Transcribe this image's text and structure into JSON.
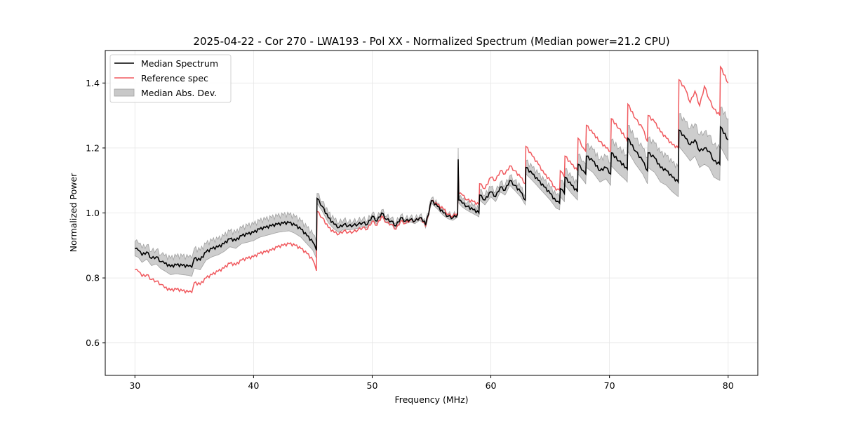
{
  "chart_data": {
    "type": "line",
    "title": "2025-04-22 - Cor 270 - LWA193 - Pol XX - Normalized Spectrum (Median power=21.2 CPU)",
    "xlabel": "Frequency (MHz)",
    "ylabel": "Normalized Power",
    "xlim": [
      27.5,
      82.5
    ],
    "ylim": [
      0.5,
      1.5
    ],
    "xticks": [
      30,
      40,
      50,
      60,
      70,
      80
    ],
    "xtick_labels": [
      "30",
      "40",
      "50",
      "60",
      "70",
      "80"
    ],
    "yticks": [
      0.6,
      0.8,
      1.0,
      1.2,
      1.4
    ],
    "ytick_labels": [
      "0.6",
      "0.8",
      "1.0",
      "1.2",
      "1.4"
    ],
    "grid": true,
    "legend_position": "top-left",
    "legend": [
      {
        "label": "Median Spectrum",
        "kind": "line",
        "color": "#000000"
      },
      {
        "label": "Reference spec",
        "kind": "line",
        "color": "#f0595e"
      },
      {
        "label": "Median Abs. Dev.",
        "kind": "patch",
        "color": "#c8c8c8"
      }
    ],
    "x": [
      30.0,
      30.3,
      30.6,
      31.0,
      31.4,
      31.8,
      32.2,
      32.5,
      33.0,
      33.5,
      34.0,
      34.5,
      34.8,
      35.0,
      35.5,
      36.0,
      36.5,
      37.0,
      37.5,
      38.0,
      38.5,
      39.0,
      39.5,
      40.0,
      40.5,
      41.0,
      41.5,
      42.0,
      42.5,
      43.0,
      43.5,
      44.0,
      44.5,
      45.0,
      45.3,
      45.35,
      45.8,
      46.3,
      46.8,
      47.2,
      47.6,
      48.0,
      48.4,
      48.8,
      49.2,
      49.6,
      50.0,
      50.4,
      50.8,
      51.2,
      51.6,
      52.0,
      52.4,
      52.8,
      53.2,
      53.6,
      54.0,
      54.4,
      54.5,
      55.0,
      55.5,
      56.0,
      56.4,
      56.8,
      57.2,
      57.25,
      57.3,
      57.6,
      58.0,
      58.5,
      59.0,
      59.05,
      59.5,
      60.0,
      60.4,
      60.8,
      61.2,
      61.6,
      62.0,
      62.5,
      62.9,
      62.95,
      63.5,
      64.0,
      64.5,
      65.0,
      65.5,
      65.8,
      65.85,
      66.2,
      66.25,
      66.8,
      67.3,
      67.35,
      67.8,
      68.0,
      68.05,
      68.6,
      69.2,
      69.7,
      70.1,
      70.15,
      70.8,
      71.4,
      71.5,
      71.55,
      72.2,
      72.8,
      73.2,
      73.25,
      73.8,
      74.3,
      74.8,
      75.3,
      75.8,
      75.85,
      76.4,
      76.8,
      77.2,
      77.6,
      78.0,
      78.4,
      78.8,
      79.3,
      79.35,
      80.0
    ],
    "series": [
      {
        "name": "Median Spectrum",
        "color": "#000000",
        "values": [
          0.89,
          0.885,
          0.87,
          0.88,
          0.86,
          0.865,
          0.85,
          0.845,
          0.835,
          0.84,
          0.838,
          0.836,
          0.833,
          0.86,
          0.855,
          0.88,
          0.89,
          0.895,
          0.905,
          0.92,
          0.915,
          0.93,
          0.935,
          0.94,
          0.95,
          0.955,
          0.96,
          0.965,
          0.968,
          0.97,
          0.962,
          0.95,
          0.93,
          0.91,
          0.885,
          1.045,
          1.02,
          0.985,
          0.965,
          0.955,
          0.965,
          0.96,
          0.962,
          0.965,
          0.97,
          0.965,
          0.99,
          0.975,
          1.0,
          0.98,
          0.975,
          0.96,
          0.985,
          0.975,
          0.98,
          0.975,
          0.985,
          0.975,
          0.962,
          1.038,
          1.02,
          1.0,
          0.99,
          0.985,
          0.995,
          1.165,
          1.04,
          1.03,
          1.02,
          1.01,
          1.0,
          1.055,
          1.04,
          1.065,
          1.05,
          1.08,
          1.07,
          1.1,
          1.085,
          1.065,
          1.04,
          1.14,
          1.12,
          1.1,
          1.08,
          1.06,
          1.035,
          1.03,
          1.075,
          1.06,
          1.11,
          1.085,
          1.065,
          1.15,
          1.13,
          1.12,
          1.175,
          1.16,
          1.13,
          1.14,
          1.12,
          1.185,
          1.16,
          1.14,
          1.135,
          1.23,
          1.19,
          1.16,
          1.13,
          1.185,
          1.17,
          1.14,
          1.13,
          1.11,
          1.095,
          1.255,
          1.23,
          1.21,
          1.225,
          1.19,
          1.2,
          1.19,
          1.16,
          1.15,
          1.265,
          1.225
        ]
      },
      {
        "name": "Reference spec",
        "color": "#f0595e",
        "values": [
          0.825,
          0.82,
          0.805,
          0.81,
          0.795,
          0.79,
          0.78,
          0.77,
          0.762,
          0.765,
          0.76,
          0.757,
          0.755,
          0.785,
          0.78,
          0.8,
          0.81,
          0.82,
          0.83,
          0.845,
          0.84,
          0.855,
          0.86,
          0.865,
          0.875,
          0.88,
          0.885,
          0.895,
          0.9,
          0.905,
          0.9,
          0.89,
          0.875,
          0.855,
          0.822,
          1.005,
          0.985,
          0.955,
          0.94,
          0.935,
          0.945,
          0.94,
          0.942,
          0.948,
          0.955,
          0.95,
          0.975,
          0.962,
          0.99,
          0.97,
          0.965,
          0.95,
          0.975,
          0.968,
          0.978,
          0.975,
          0.985,
          0.97,
          0.958,
          1.038,
          1.025,
          1.012,
          0.995,
          0.99,
          1.0,
          1.14,
          1.06,
          1.055,
          1.04,
          1.035,
          1.025,
          1.09,
          1.075,
          1.11,
          1.1,
          1.13,
          1.12,
          1.145,
          1.13,
          1.11,
          1.09,
          1.205,
          1.175,
          1.15,
          1.12,
          1.1,
          1.07,
          1.07,
          1.13,
          1.11,
          1.175,
          1.15,
          1.13,
          1.23,
          1.2,
          1.19,
          1.27,
          1.245,
          1.22,
          1.2,
          1.19,
          1.29,
          1.26,
          1.23,
          1.22,
          1.335,
          1.29,
          1.26,
          1.22,
          1.3,
          1.28,
          1.25,
          1.23,
          1.21,
          1.2,
          1.41,
          1.38,
          1.34,
          1.375,
          1.33,
          1.39,
          1.35,
          1.32,
          1.3,
          1.45,
          1.4
        ]
      }
    ],
    "mad_halfwidth": [
      0.022,
      0.022,
      0.022,
      0.022,
      0.022,
      0.022,
      0.022,
      0.023,
      0.025,
      0.027,
      0.028,
      0.028,
      0.028,
      0.03,
      0.03,
      0.025,
      0.025,
      0.024,
      0.024,
      0.024,
      0.024,
      0.024,
      0.025,
      0.025,
      0.025,
      0.025,
      0.025,
      0.025,
      0.025,
      0.025,
      0.025,
      0.025,
      0.025,
      0.025,
      0.025,
      0.015,
      0.015,
      0.015,
      0.015,
      0.015,
      0.015,
      0.012,
      0.012,
      0.012,
      0.012,
      0.012,
      0.01,
      0.01,
      0.01,
      0.01,
      0.01,
      0.01,
      0.008,
      0.008,
      0.008,
      0.008,
      0.008,
      0.008,
      0.008,
      0.008,
      0.008,
      0.008,
      0.008,
      0.008,
      0.008,
      0.035,
      0.01,
      0.012,
      0.012,
      0.012,
      0.012,
      0.015,
      0.015,
      0.015,
      0.015,
      0.015,
      0.015,
      0.015,
      0.015,
      0.015,
      0.015,
      0.02,
      0.02,
      0.02,
      0.02,
      0.02,
      0.02,
      0.02,
      0.025,
      0.025,
      0.025,
      0.025,
      0.025,
      0.03,
      0.03,
      0.03,
      0.035,
      0.035,
      0.035,
      0.035,
      0.035,
      0.04,
      0.04,
      0.04,
      0.04,
      0.04,
      0.04,
      0.04,
      0.04,
      0.045,
      0.045,
      0.045,
      0.045,
      0.045,
      0.045,
      0.05,
      0.05,
      0.05,
      0.05,
      0.05,
      0.05,
      0.05,
      0.05,
      0.05,
      0.06,
      0.065
    ]
  }
}
